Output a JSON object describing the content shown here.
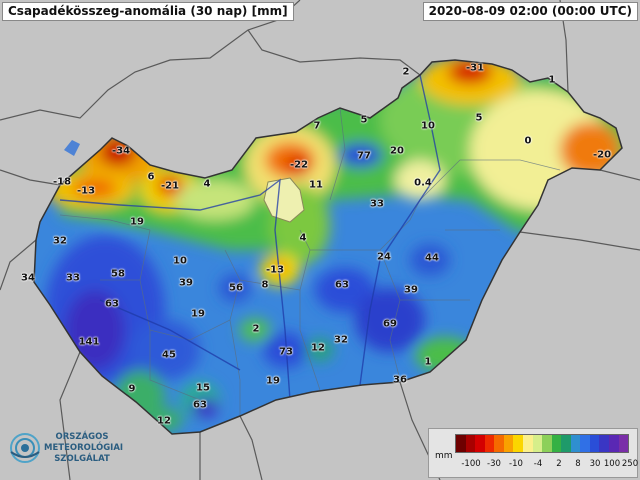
{
  "header": {
    "title": "Csapadékösszeg-anomália (30 nap) [mm]",
    "timestamp": "2020-08-09 02:00 (00:00 UTC)"
  },
  "logo": {
    "lines": [
      "ORSZÁGOS",
      "METEOROLÓGIAI",
      "SZOLGÁLAT"
    ]
  },
  "legend": {
    "unit": "mm",
    "colors": [
      "#6e0000",
      "#a80000",
      "#d40000",
      "#ee2a00",
      "#f56a00",
      "#f9a100",
      "#fbd600",
      "#fbf08c",
      "#d6ee8a",
      "#8cd05a",
      "#35b144",
      "#1f9a6a",
      "#2f8fd0",
      "#3070e6",
      "#2a4ed8",
      "#3a36c4",
      "#5a28b4",
      "#7a2ea8"
    ],
    "ticks": [
      "-100",
      "-30",
      "-10",
      "-4",
      "2",
      "8",
      "30",
      "100",
      "250"
    ]
  },
  "map_labels": [
    {
      "text": "-31"
    },
    {
      "text": "2"
    },
    {
      "text": "1"
    },
    {
      "text": "-34"
    },
    {
      "text": "7"
    },
    {
      "text": "5"
    },
    {
      "text": "10"
    },
    {
      "text": "5"
    },
    {
      "text": "0"
    },
    {
      "text": "-20"
    },
    {
      "text": "-18"
    },
    {
      "text": "6"
    },
    {
      "text": "-13"
    },
    {
      "text": "-21"
    },
    {
      "text": "4"
    },
    {
      "text": "-22"
    },
    {
      "text": "77"
    },
    {
      "text": "20"
    },
    {
      "text": "11"
    },
    {
      "text": "0.4"
    },
    {
      "text": "19"
    },
    {
      "text": "33"
    },
    {
      "text": "32"
    },
    {
      "text": "4"
    },
    {
      "text": "34"
    },
    {
      "text": "33"
    },
    {
      "text": "58"
    },
    {
      "text": "10"
    },
    {
      "text": "-13"
    },
    {
      "text": "24"
    },
    {
      "text": "44"
    },
    {
      "text": "39"
    },
    {
      "text": "56"
    },
    {
      "text": "8"
    },
    {
      "text": "63"
    },
    {
      "text": "39"
    },
    {
      "text": "63"
    },
    {
      "text": "19"
    },
    {
      "text": "2"
    },
    {
      "text": "69"
    },
    {
      "text": "141"
    },
    {
      "text": "32"
    },
    {
      "text": "45"
    },
    {
      "text": "73"
    },
    {
      "text": "12"
    },
    {
      "text": "1"
    },
    {
      "text": "19"
    },
    {
      "text": "36"
    },
    {
      "text": "9"
    },
    {
      "text": "15"
    },
    {
      "text": "63"
    },
    {
      "text": "12"
    }
  ]
}
